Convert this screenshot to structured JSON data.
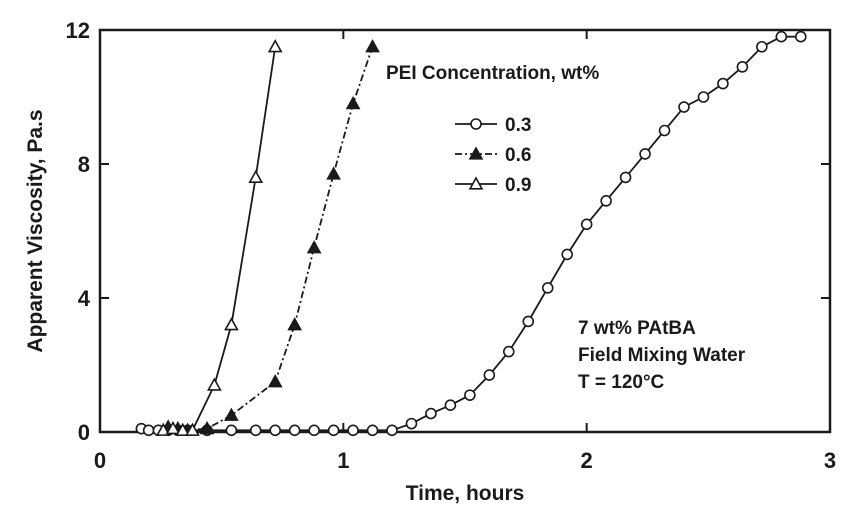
{
  "chart_data": {
    "type": "line",
    "xlabel": "Time, hours",
    "ylabel": "Apparent Viscosity, Pa.s",
    "xlim": [
      0,
      3
    ],
    "ylim": [
      0,
      12
    ],
    "x_ticks": [
      "0",
      "1",
      "2",
      "3"
    ],
    "y_ticks": [
      "0",
      "4",
      "8",
      "12"
    ],
    "x_tick_values": [
      0,
      1,
      2,
      3
    ],
    "y_tick_values": [
      0,
      4,
      8,
      12
    ],
    "grid": false,
    "legend": {
      "title": "PEI Concentration, wt%",
      "placement": "top-right"
    },
    "series": [
      {
        "name": "0.3",
        "marker": "open-circle",
        "line": "solid",
        "x": [
          0.17,
          0.2,
          0.24,
          0.28,
          0.32,
          0.36,
          0.44,
          0.54,
          0.64,
          0.72,
          0.8,
          0.88,
          0.96,
          1.04,
          1.12,
          1.2,
          1.28,
          1.36,
          1.44,
          1.52,
          1.6,
          1.68,
          1.76,
          1.84,
          1.92,
          2.0,
          2.08,
          2.16,
          2.24,
          2.32,
          2.4,
          2.48,
          2.56,
          2.64,
          2.72,
          2.8,
          2.88
        ],
        "y": [
          0.1,
          0.05,
          0.05,
          0.05,
          0.05,
          0.05,
          0.05,
          0.05,
          0.05,
          0.05,
          0.05,
          0.05,
          0.05,
          0.05,
          0.05,
          0.05,
          0.25,
          0.55,
          0.8,
          1.1,
          1.7,
          2.4,
          3.3,
          4.3,
          5.3,
          6.2,
          6.9,
          7.6,
          8.3,
          9.0,
          9.7,
          10.0,
          10.4,
          10.9,
          11.5,
          11.8,
          11.8
        ]
      },
      {
        "name": "0.6",
        "marker": "filled-triangle",
        "line": "dash-dot",
        "x": [
          0.28,
          0.32,
          0.36,
          0.44,
          0.54,
          0.72,
          0.8,
          0.88,
          0.96,
          1.04,
          1.12
        ],
        "y": [
          0.15,
          0.1,
          0.05,
          0.1,
          0.5,
          1.5,
          3.2,
          5.5,
          7.7,
          9.8,
          11.5
        ]
      },
      {
        "name": "0.9",
        "marker": "open-triangle",
        "line": "solid",
        "x": [
          0.26,
          0.3,
          0.34,
          0.38,
          0.47,
          0.54,
          0.64,
          0.72
        ],
        "y": [
          0.05,
          0.1,
          0.05,
          0.05,
          1.4,
          3.2,
          7.6,
          11.5
        ]
      }
    ],
    "annotations": [
      "7 wt% PAtBA",
      "Field Mixing Water",
      "T = 120°C"
    ]
  }
}
